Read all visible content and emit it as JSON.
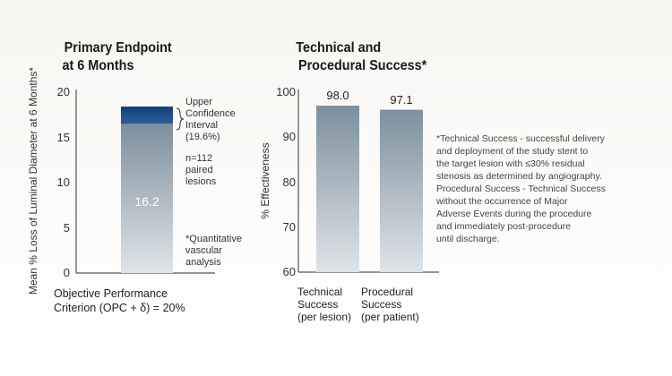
{
  "chart_data": [
    {
      "type": "bar",
      "title": [
        "Primary Endpoint",
        "at 6 Months"
      ],
      "ylabel": "Mean % Loss of Luminal Diameter at 6 Months*",
      "xlabel": [
        "Objective Performance",
        "Criterion (OPC + δ) = 20%"
      ],
      "ylim": [
        0,
        20
      ],
      "yticks": [
        0,
        5,
        10,
        15,
        20
      ],
      "value": 16.2,
      "value_label": "16.2",
      "upper_ci": 19.6,
      "annotations": {
        "ci": [
          "Upper",
          "Confidence",
          "Interval",
          "(19.6%)"
        ],
        "n": [
          "n=112",
          "paired",
          "lesions"
        ],
        "qva": [
          "*Quantitative",
          "vascular",
          "analysis"
        ]
      },
      "colors": {
        "bar_top": "#7d909e",
        "bar_bottom": "#dde2e7",
        "ci": "#1a4a80"
      }
    },
    {
      "type": "bar",
      "title": [
        "Technical and",
        "Procedural Success*"
      ],
      "ylabel": "% Effectiveness",
      "ylim": [
        60,
        100
      ],
      "yticks": [
        60,
        70,
        80,
        90,
        100
      ],
      "categories": [
        [
          "Technical",
          "Success",
          "(per lesion)"
        ],
        [
          "Procedural",
          "Success",
          "(per patient)"
        ]
      ],
      "values": [
        98.0,
        97.1
      ],
      "value_labels": [
        "98.0",
        "97.1"
      ],
      "footnote": [
        "*Technical Success - successful delivery",
        "and deployment of the study stent to",
        "the target lesion with ≤30% residual",
        "stenosis as determined by angiography.",
        "Procedural Success - Technical Success",
        "without the occurrence of Major",
        "Adverse Events during the procedure",
        "and immediately post-procedure",
        "until discharge."
      ]
    }
  ]
}
